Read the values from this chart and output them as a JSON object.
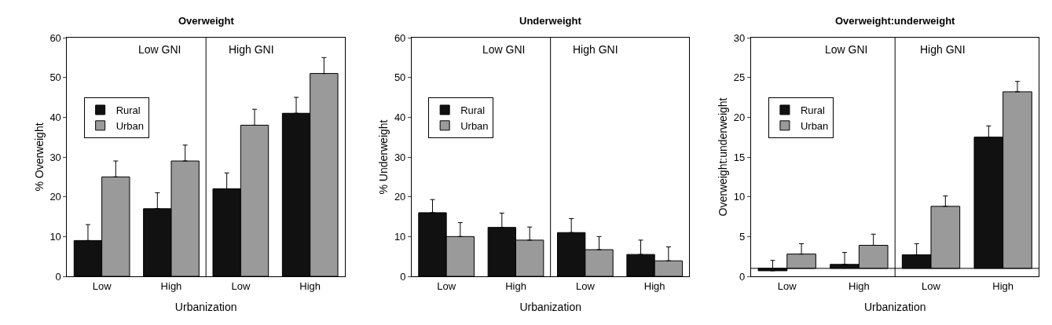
{
  "chart_data": [
    {
      "type": "bar",
      "title": "Overweight",
      "xlabel": "Urbanization",
      "ylabel": "% Overweight",
      "categories": [
        "Low",
        "High",
        "Low",
        "High"
      ],
      "ylim": [
        0,
        60
      ],
      "yticks": [
        0,
        10,
        20,
        30,
        40,
        50,
        60
      ],
      "legend": "top left",
      "annotations": [
        "Low GNI",
        "High GNI"
      ],
      "series": [
        {
          "name": "Rural",
          "color": "#111111",
          "values": [
            9,
            17,
            22,
            41
          ],
          "errors": [
            [
              9,
              13
            ],
            [
              17,
              21
            ],
            [
              22,
              26
            ],
            [
              41,
              45
            ]
          ]
        },
        {
          "name": "Urban",
          "color": "#9a9a9a",
          "values": [
            25,
            29,
            38,
            51
          ],
          "errors": [
            [
              25,
              29
            ],
            [
              29,
              33
            ],
            [
              38,
              42
            ],
            [
              51,
              55
            ]
          ]
        }
      ]
    },
    {
      "type": "bar",
      "title": "Underweight",
      "xlabel": "Urbanization",
      "ylabel": "% Underweight",
      "categories": [
        "Low",
        "High",
        "Low",
        "High"
      ],
      "ylim": [
        0,
        60
      ],
      "yticks": [
        0,
        10,
        20,
        30,
        40,
        50,
        60
      ],
      "legend": "top left",
      "annotations": [
        "Low GNI",
        "High GNI"
      ],
      "series": [
        {
          "name": "Rural",
          "color": "#111111",
          "values": [
            16,
            12.3,
            11,
            5.5
          ],
          "errors": [
            [
              16,
              19.3
            ],
            [
              12.3,
              15.9
            ],
            [
              11,
              14.5
            ],
            [
              5.5,
              9.1
            ]
          ]
        },
        {
          "name": "Urban",
          "color": "#9a9a9a",
          "values": [
            10,
            9.1,
            6.7,
            3.9
          ],
          "errors": [
            [
              10,
              13.5
            ],
            [
              9.1,
              12.4
            ],
            [
              6.7,
              10
            ],
            [
              3.9,
              7.4
            ]
          ]
        }
      ]
    },
    {
      "type": "bar",
      "title": "Overweight:underweight",
      "xlabel": "Urbanization",
      "ylabel": "Overweight:underweight",
      "categories": [
        "Low",
        "High",
        "Low",
        "High"
      ],
      "ylim": [
        0,
        30
      ],
      "yticks": [
        0,
        5,
        10,
        15,
        20,
        25,
        30
      ],
      "legend": "top left",
      "annotations": [
        "Low GNI",
        "High GNI"
      ],
      "ref_lines": [
        {
          "axis": "y",
          "value": 1,
          "color": "#000000"
        }
      ],
      "series": [
        {
          "name": "Rural",
          "color": "#111111",
          "base": [
            1,
            1,
            1,
            1
          ],
          "values": [
            -0.3,
            0.5,
            1.7,
            16.5
          ],
          "errors": [
            [
              0.7,
              2.0
            ],
            [
              1.5,
              3.0
            ],
            [
              2.7,
              4.1
            ],
            [
              17.5,
              18.9
            ]
          ]
        },
        {
          "name": "Urban",
          "color": "#9a9a9a",
          "base": [
            1,
            1,
            1,
            1
          ],
          "values": [
            1.8,
            2.9,
            7.8,
            22.2
          ],
          "errors": [
            [
              2.8,
              4.1
            ],
            [
              3.9,
              5.3
            ],
            [
              8.8,
              10.1
            ],
            [
              23.2,
              24.5
            ]
          ]
        }
      ]
    }
  ]
}
